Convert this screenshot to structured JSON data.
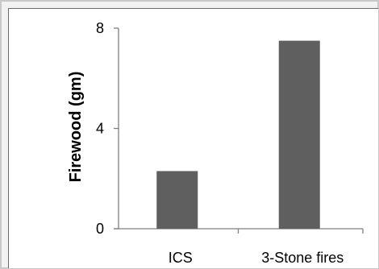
{
  "chart_data": {
    "type": "bar",
    "categories": [
      "ICS",
      "3-Stone fires"
    ],
    "values": [
      2.3,
      7.5
    ],
    "ylabel": "Firewood (gm)",
    "xlabel": "",
    "title": "",
    "ylim": [
      0,
      8
    ],
    "yticks": [
      "0",
      "4",
      "8"
    ],
    "grid": false,
    "legend": "none",
    "bar_color": "#5f5f5f"
  }
}
